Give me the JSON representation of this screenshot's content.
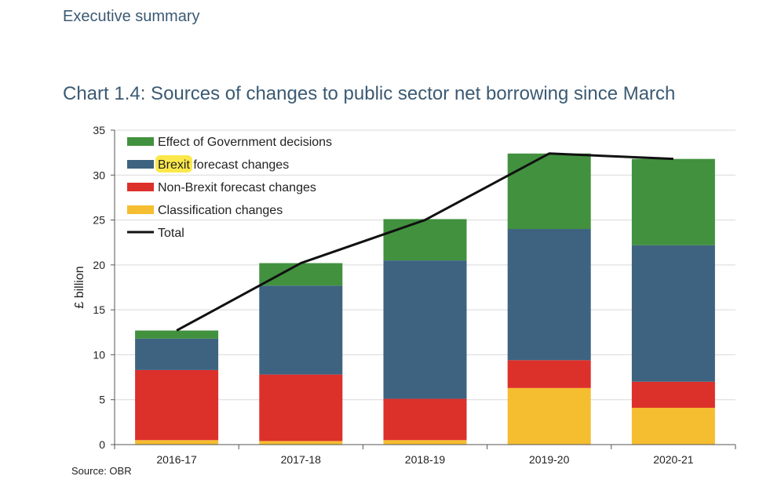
{
  "header": {
    "running_head": "Executive summary"
  },
  "chart_data": {
    "type": "bar",
    "stacked": true,
    "title": "Chart 1.4: Sources of changes to public sector net borrowing since March",
    "xlabel": "",
    "ylabel": "£ billion",
    "ylim": [
      0,
      35
    ],
    "yticks": [
      0,
      5,
      10,
      15,
      20,
      25,
      30,
      35
    ],
    "grid": "horizontal",
    "legend_position": "top-left",
    "categories": [
      "2016-17",
      "2017-18",
      "2018-19",
      "2019-20",
      "2020-21"
    ],
    "series": [
      {
        "name": "Classification changes",
        "color": "#f5bd30",
        "values": [
          0.5,
          0.4,
          0.5,
          6.3,
          4.1
        ]
      },
      {
        "name": "Non-Brexit forecast changes",
        "color": "#dc302b",
        "values": [
          7.8,
          7.4,
          4.6,
          3.1,
          2.9
        ]
      },
      {
        "name": "Brexit forecast changes",
        "color": "#3d6380",
        "values": [
          3.5,
          9.9,
          15.4,
          14.6,
          15.2
        ]
      },
      {
        "name": "Effect of Government decisions",
        "color": "#42913f",
        "values": [
          0.9,
          2.5,
          4.6,
          8.4,
          9.6
        ]
      }
    ],
    "line_series": {
      "name": "Total",
      "color": "#111111",
      "values": [
        12.7,
        20.2,
        25.0,
        32.4,
        31.8
      ]
    },
    "legend_items": [
      {
        "label": "Effect of Government decisions",
        "color": "#42913f",
        "kind": "box"
      },
      {
        "label_highlight": "Brexit",
        "label_rest": " forecast changes",
        "color": "#3d6380",
        "kind": "box",
        "highlight_color": "#fbe84a"
      },
      {
        "label": "Non-Brexit forecast changes",
        "color": "#dc302b",
        "kind": "box"
      },
      {
        "label": "Classification changes",
        "color": "#f5bd30",
        "kind": "box"
      },
      {
        "label": "Total",
        "color": "#111111",
        "kind": "line"
      }
    ]
  },
  "footer": {
    "source": "Source: OBR"
  }
}
